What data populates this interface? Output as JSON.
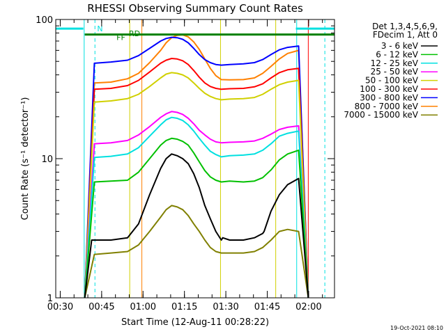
{
  "chart_data": {
    "type": "line",
    "title": "RHESSI Observing Summary Count Rates",
    "xlabel": "Start Time (12-Aug-11 00:28:22)",
    "ylabel": "Count Rate (s⁻¹ detector⁻¹)",
    "x_unit": "minutes after 00:28:22",
    "xlim": [
      0,
      101
    ],
    "ylim": [
      1,
      100
    ],
    "yscale": "log",
    "x_ticks": [
      {
        "t": 1.63,
        "label": "00:30"
      },
      {
        "t": 16.63,
        "label": "00:45"
      },
      {
        "t": 31.63,
        "label": "01:00"
      },
      {
        "t": 46.63,
        "label": "01:15"
      },
      {
        "t": 61.63,
        "label": "01:30"
      },
      {
        "t": 76.63,
        "label": "01:45"
      },
      {
        "t": 91.63,
        "label": "02:00"
      }
    ],
    "y_ticks": [
      {
        "v": 1,
        "label": "1"
      },
      {
        "v": 10,
        "label": "10"
      },
      {
        "v": 100,
        "label": "100"
      }
    ],
    "legend_header": [
      "Det 1,3,4,5,6,9,",
      "FDecim 1, Att 0"
    ],
    "legend_position": "right",
    "series": [
      {
        "name": "3 - 6 keV",
        "color": "#000000",
        "x": [
          10.5,
          13,
          20,
          26,
          30,
          34,
          38,
          40,
          42,
          44,
          46,
          48,
          50,
          52,
          54,
          56,
          58,
          60,
          60.5,
          63,
          68,
          72,
          75,
          75.5,
          78,
          81,
          84,
          88,
          91.5
        ],
        "y": [
          1,
          2.6,
          2.6,
          2.7,
          3.4,
          5.5,
          8.5,
          10,
          10.8,
          10.5,
          10,
          9.2,
          7.8,
          6.2,
          4.6,
          3.7,
          3.0,
          2.6,
          2.7,
          2.6,
          2.6,
          2.7,
          2.9,
          3.0,
          4.2,
          5.5,
          6.5,
          7.2,
          1
        ]
      },
      {
        "name": "6 - 12 keV",
        "color": "#00c000",
        "x": [
          10.5,
          14,
          20,
          26,
          30,
          34,
          38,
          40,
          42,
          44,
          46,
          48,
          50,
          52,
          54,
          56,
          58,
          60,
          63,
          68,
          72,
          75,
          78,
          81,
          84,
          88,
          91.5
        ],
        "y": [
          1,
          6.8,
          6.9,
          7.0,
          8.0,
          10.0,
          12.5,
          13.5,
          14.0,
          13.8,
          13.3,
          12.5,
          11.0,
          9.5,
          8.2,
          7.4,
          7.0,
          6.8,
          6.9,
          6.8,
          6.9,
          7.3,
          8.3,
          9.8,
          10.8,
          11.5,
          1
        ]
      },
      {
        "name": "12 - 25 keV",
        "color": "#00e0e0",
        "x": [
          10.5,
          14,
          20,
          26,
          30,
          34,
          38,
          40,
          42,
          44,
          46,
          48,
          50,
          52,
          54,
          56,
          58,
          60,
          63,
          68,
          72,
          75,
          78,
          81,
          84,
          88,
          91.5
        ],
        "y": [
          1,
          10.2,
          10.4,
          10.8,
          12.0,
          14.5,
          17.5,
          19.0,
          19.8,
          19.5,
          18.8,
          17.5,
          15.8,
          14.0,
          12.5,
          11.3,
          10.7,
          10.3,
          10.5,
          10.6,
          10.8,
          11.5,
          12.8,
          14.5,
          15.2,
          15.8,
          1
        ]
      },
      {
        "name": "25 - 50 keV",
        "color": "#ff00ff",
        "x": [
          10.5,
          14,
          20,
          26,
          30,
          34,
          38,
          40,
          42,
          44,
          46,
          48,
          50,
          52,
          54,
          56,
          58,
          60,
          63,
          68,
          72,
          75,
          78,
          81,
          84,
          88,
          91.5
        ],
        "y": [
          1,
          12.8,
          13.0,
          13.5,
          14.8,
          17.0,
          19.8,
          21.0,
          21.8,
          21.5,
          20.8,
          19.5,
          17.8,
          16.0,
          14.8,
          13.8,
          13.2,
          13.0,
          13.1,
          13.2,
          13.4,
          14.0,
          15.0,
          16.2,
          16.8,
          17.2,
          1
        ]
      },
      {
        "name": "50 - 100 keV",
        "color": "#d0d000",
        "x": [
          10.5,
          14,
          20,
          26,
          30,
          34,
          38,
          40,
          42,
          44,
          46,
          48,
          50,
          52,
          54,
          56,
          58,
          60,
          63,
          68,
          72,
          75,
          78,
          81,
          84,
          88,
          91.5
        ],
        "y": [
          1,
          25.5,
          26.0,
          27.0,
          29.0,
          33.0,
          38.0,
          40.5,
          41.5,
          41.0,
          40.0,
          38.0,
          35.0,
          32.0,
          29.5,
          28.0,
          27.0,
          26.5,
          26.8,
          27.0,
          27.5,
          29.0,
          31.5,
          34.0,
          35.5,
          36.5,
          1
        ]
      },
      {
        "name": "100 - 300 keV",
        "color": "#ff0000",
        "x": [
          10.5,
          14,
          20,
          26,
          30,
          34,
          38,
          40,
          42,
          44,
          46,
          48,
          50,
          52,
          54,
          56,
          58,
          60,
          63,
          68,
          72,
          75,
          78,
          81,
          84,
          88,
          91.5
        ],
        "y": [
          1,
          31.5,
          32.0,
          33.5,
          36.5,
          42.0,
          48.5,
          51.0,
          52.5,
          52.0,
          50.5,
          47.5,
          43.0,
          38.5,
          35.0,
          33.0,
          32.0,
          31.5,
          31.8,
          32.0,
          32.8,
          34.5,
          38.0,
          41.5,
          43.5,
          44.5,
          1
        ]
      },
      {
        "name": "300 - 800 keV",
        "color": "#0000ff",
        "x": [
          10.5,
          14,
          20,
          26,
          30,
          34,
          38,
          40,
          42,
          44,
          46,
          48,
          50,
          52,
          54,
          56,
          58,
          60,
          63,
          68,
          72,
          75,
          78,
          81,
          84,
          88,
          91.5
        ],
        "y": [
          1,
          48.5,
          49.5,
          51.0,
          55.0,
          62.0,
          70.0,
          73.0,
          74.5,
          74.0,
          72.0,
          68.0,
          62.0,
          56.0,
          51.5,
          49.0,
          47.5,
          47.0,
          47.5,
          48.0,
          49.0,
          51.5,
          56.0,
          60.5,
          63.0,
          64.5,
          1
        ]
      },
      {
        "name": "800 - 7000 keV",
        "color": "#ff8000",
        "x": [
          10.5,
          14,
          20,
          26,
          30,
          34,
          38,
          40,
          42,
          44,
          46,
          48,
          50,
          52,
          54,
          56,
          58,
          60,
          63,
          68,
          72,
          75,
          78,
          81,
          84,
          88,
          91.5
        ],
        "y": [
          1,
          35.0,
          35.5,
          37.5,
          41.0,
          49.0,
          60.0,
          68.0,
          74.0,
          77.0,
          77.5,
          75.0,
          69.0,
          61.0,
          52.0,
          44.5,
          39.5,
          37.0,
          36.8,
          37.0,
          38.0,
          41.0,
          46.0,
          52.0,
          57.0,
          60.0,
          1
        ]
      },
      {
        "name": "7000 - 15000 keV",
        "color": "#808000",
        "x": [
          10.5,
          14,
          20,
          26,
          30,
          34,
          38,
          40,
          42,
          44,
          46,
          48,
          50,
          52,
          54,
          56,
          58,
          60,
          63,
          68,
          72,
          75,
          78,
          81,
          84,
          88,
          91.5
        ],
        "y": [
          1,
          2.05,
          2.1,
          2.15,
          2.4,
          3.0,
          3.8,
          4.3,
          4.6,
          4.5,
          4.3,
          3.9,
          3.4,
          3.0,
          2.6,
          2.3,
          2.15,
          2.1,
          2.1,
          2.1,
          2.15,
          2.3,
          2.6,
          3.0,
          3.1,
          3.0,
          1
        ]
      }
    ],
    "bars": [
      {
        "label": "N",
        "color": "#00e0e0",
        "y": 86,
        "segments": [
          [
            0,
            10
          ],
          [
            87,
            101
          ]
        ]
      },
      {
        "label": "RD",
        "color": "#008000",
        "y": 78,
        "segments": [
          [
            10.5,
            101
          ]
        ]
      },
      {
        "label": "FF",
        "color": "#008000",
        "y": 73,
        "segments": []
      }
    ],
    "markers": [
      {
        "t": 0.0,
        "color": "#00e0e0",
        "style": "solid"
      },
      {
        "t": 10.3,
        "color": "#00e0e0",
        "style": "solid"
      },
      {
        "t": 14.2,
        "color": "#00e0e0",
        "style": "dashed"
      },
      {
        "t": 87.3,
        "color": "#00e0e0",
        "style": "solid"
      },
      {
        "t": 97.5,
        "color": "#00e0e0",
        "style": "dashed"
      },
      {
        "t": 26.8,
        "color": "#d0d000",
        "style": "solid"
      },
      {
        "t": 59.7,
        "color": "#d0d000",
        "style": "solid"
      },
      {
        "t": 79.7,
        "color": "#d0d000",
        "style": "solid"
      },
      {
        "t": 31.2,
        "color": "#ff8000",
        "style": "solid"
      },
      {
        "t": 91.5,
        "color": "#ff0000",
        "style": "solid"
      }
    ],
    "timestamp": "19-Oct-2021 08:10"
  }
}
